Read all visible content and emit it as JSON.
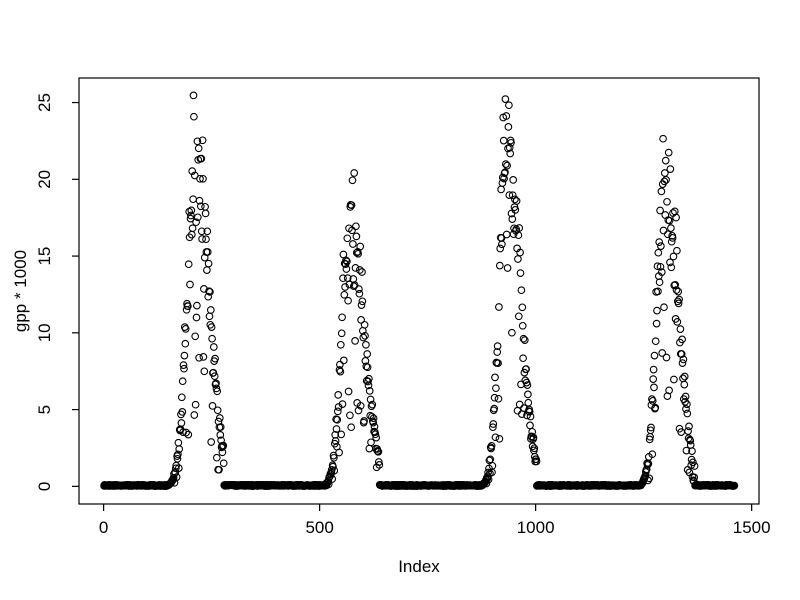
{
  "figure": {
    "background_color": "#ffffff",
    "foreground_color": "#000000",
    "description": "R base scatter plot of daily GPP*1000 values over ~4 years showing seasonal peaks"
  },
  "chart_data": {
    "type": "scatter",
    "title": "",
    "xlabel": "Index",
    "ylabel": "gpp * 1000",
    "x_ticks": [
      0,
      500,
      1000,
      1500
    ],
    "y_ticks": [
      0,
      5,
      10,
      15,
      20,
      25
    ],
    "xlim": [
      -57,
      1517
    ],
    "ylim": [
      -1.15,
      26.6
    ],
    "grid": false,
    "legend": null,
    "n_points": 1460,
    "days_per_year": 365,
    "marker": {
      "shape": "open-circle",
      "radius_px": 3.3,
      "stroke_px": 1.1,
      "color": "#000000",
      "fill": "none"
    },
    "pattern": "zero winter baseline with one bell-shaped growing-season peak per year",
    "seasons": [
      {
        "year": 1,
        "index_range": [
          1,
          365
        ],
        "start_day": 151,
        "peak_day": 213,
        "end_day": 278,
        "peak_value": 25.5,
        "sigma_left": 19,
        "sigma_right": 30
      },
      {
        "year": 2,
        "index_range": [
          366,
          730
        ],
        "start_day": 147,
        "peak_day": 205,
        "end_day": 273,
        "peak_value": 20.4,
        "sigma_left": 18,
        "sigma_right": 32
      },
      {
        "year": 3,
        "index_range": [
          731,
          1095
        ],
        "start_day": 147,
        "peak_day": 203,
        "end_day": 272,
        "peak_value": 25.6,
        "sigma_left": 17,
        "sigma_right": 30
      },
      {
        "year": 4,
        "index_range": [
          1096,
          1460
        ],
        "start_day": 147,
        "peak_day": 203,
        "end_day": 273,
        "peak_value": 24.6,
        "sigma_left": 17,
        "sigma_right": 30
      }
    ],
    "noise": {
      "seed": 20240607,
      "lower_frac": 0.58,
      "span_frac": 0.52,
      "dip_prob": 0.16,
      "dip_min": 0.2,
      "dip_span": 0.4,
      "baseline_max": 0.1,
      "envelope_floor": 0.12,
      "value_cap": 25.6
    }
  }
}
